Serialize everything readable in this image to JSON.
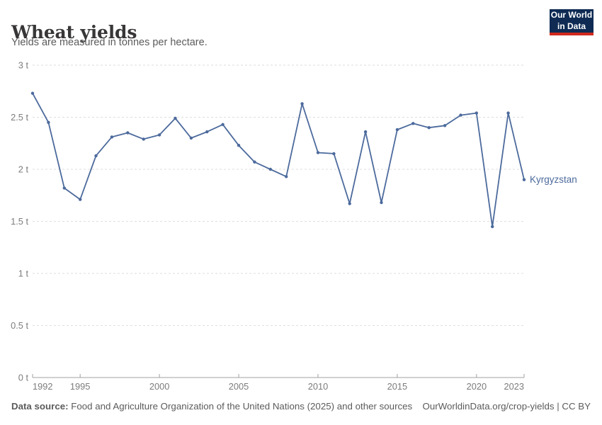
{
  "header": {
    "title": "Wheat yields",
    "subtitle": "Yields are measured in tonnes per hectare."
  },
  "logo": {
    "line1": "Our World",
    "line2": "in Data",
    "bg_color": "#0f2b54",
    "accent_color": "#d0291d"
  },
  "chart_data": {
    "type": "line",
    "title": "Wheat yields",
    "subtitle": "Yields are measured in tonnes per hectare.",
    "xlim": [
      1992,
      2023
    ],
    "ylim": [
      0,
      3
    ],
    "grid": "horizontal-dashed",
    "legend_position": "end-of-line-label",
    "x_ticks": [
      1992,
      1995,
      2000,
      2005,
      2010,
      2015,
      2020,
      2023
    ],
    "y_ticks": [
      {
        "value": 0,
        "label": "0 t"
      },
      {
        "value": 0.5,
        "label": "0.5 t"
      },
      {
        "value": 1,
        "label": "1 t"
      },
      {
        "value": 1.5,
        "label": "1.5 t"
      },
      {
        "value": 2,
        "label": "2 t"
      },
      {
        "value": 2.5,
        "label": "2.5 t"
      },
      {
        "value": 3,
        "label": "3 t"
      }
    ],
    "end_label": "Kyrgyzstan",
    "series": [
      {
        "name": "Kyrgyzstan",
        "color": "#4C6A9C",
        "x": [
          1992,
          1993,
          1994,
          1995,
          1996,
          1997,
          1998,
          1999,
          2000,
          2001,
          2002,
          2003,
          2004,
          2005,
          2006,
          2007,
          2008,
          2009,
          2010,
          2011,
          2012,
          2013,
          2014,
          2015,
          2016,
          2017,
          2018,
          2019,
          2020,
          2021,
          2022,
          2023
        ],
        "values": [
          2.73,
          2.45,
          1.82,
          1.71,
          2.13,
          2.31,
          2.35,
          2.29,
          2.33,
          2.49,
          2.3,
          2.36,
          2.43,
          2.23,
          2.07,
          2.0,
          1.93,
          2.63,
          2.16,
          2.15,
          1.67,
          2.36,
          1.68,
          2.38,
          2.44,
          2.4,
          2.42,
          2.52,
          2.54,
          1.45,
          2.54,
          1.9
        ]
      }
    ],
    "colors": {
      "gridline": "#dedede",
      "axis": "#a1a1a1",
      "tick_text": "#7c7c7c"
    }
  },
  "footer": {
    "datasource_label": "Data source:",
    "datasource_text": " Food and Agriculture Organization of the United Nations (2025) and other sources",
    "rights": "OurWorldinData.org/crop-yields | CC BY"
  }
}
